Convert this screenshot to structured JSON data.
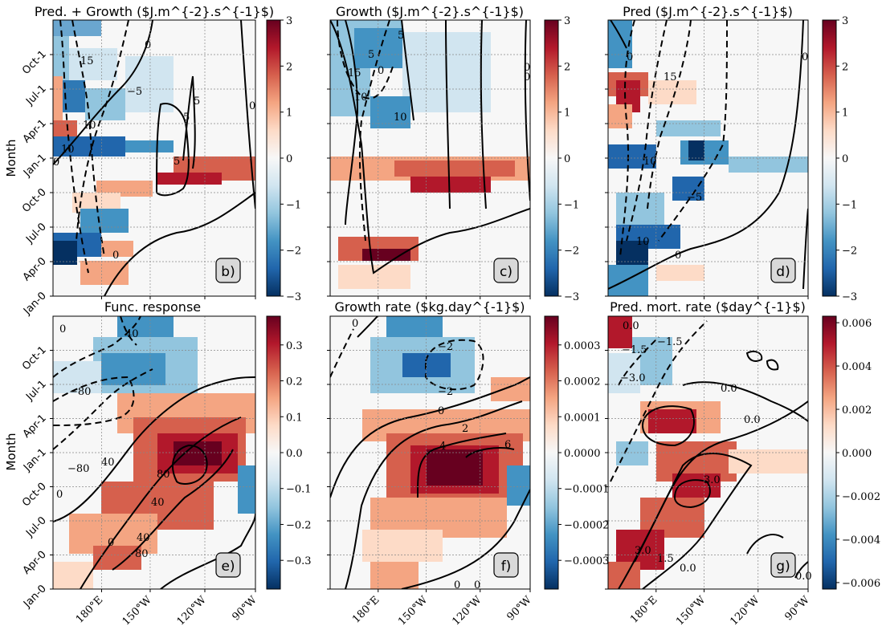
{
  "figure": {
    "ylabel": "Month",
    "rdbu_colors": [
      "#053061",
      "#2166ac",
      "#4393c3",
      "#92c5de",
      "#d1e5f0",
      "#f7f7f7",
      "#fddbc7",
      "#f4a582",
      "#d6604d",
      "#b2182b",
      "#67001f"
    ]
  },
  "chart_data": [
    {
      "id": "b",
      "type": "heatmap",
      "title": "Pred. + Growth ($J.m^{-2}.s^{-1}$)",
      "panel_label": "b)",
      "colorbar": {
        "ticks": [
          -3,
          -2,
          -1,
          0,
          1,
          2,
          3
        ],
        "labels": [
          "−3",
          "−2",
          "−1",
          "0",
          "1",
          "2",
          "3"
        ],
        "vmin": -3,
        "vmax": 3
      },
      "contour_labels": [
        "15",
        "0",
        "−5",
        "10",
        "0",
        "5",
        "5",
        "5",
        "0",
        "10",
        "0"
      ]
    },
    {
      "id": "c",
      "type": "heatmap",
      "title": "Growth ($J.m^{-2}.s^{-1}$)",
      "panel_label": "c)",
      "colorbar": {
        "ticks": [
          -3,
          -2,
          -1,
          0,
          1,
          2,
          3
        ],
        "labels": [
          "−3",
          "−2",
          "−1",
          "0",
          "1",
          "2",
          "3"
        ],
        "vmin": -3,
        "vmax": 3
      },
      "contour_labels": [
        "15",
        "5",
        "10",
        "0",
        "5",
        "10",
        "0",
        "0"
      ]
    },
    {
      "id": "d",
      "type": "heatmap",
      "title": "Pred ($J.m^{-2}.s^{-1}$)",
      "panel_label": "d)",
      "colorbar": {
        "ticks": [
          -3,
          -2,
          -1,
          0,
          1,
          2,
          3
        ],
        "labels": [
          "−3",
          "−2",
          "−1",
          "0",
          "1",
          "2",
          "3"
        ],
        "vmin": -3,
        "vmax": 3
      },
      "contour_labels": [
        "0",
        "15",
        "10",
        "−5",
        "10",
        "0",
        "0"
      ]
    },
    {
      "id": "e",
      "type": "heatmap",
      "title": "Func. response",
      "panel_label": "e)",
      "colorbar": {
        "ticks": [
          -0.3,
          -0.2,
          -0.1,
          0.0,
          0.1,
          0.2,
          0.3
        ],
        "labels": [
          "−0.3",
          "−0.2",
          "−0.1",
          "0.0",
          "0.1",
          "0.2",
          "0.3"
        ],
        "vmin": -0.38,
        "vmax": 0.38
      },
      "contour_labels": [
        "0",
        "40",
        "−80",
        "−80",
        "40",
        "80",
        "40",
        "40",
        "0",
        "80",
        "0"
      ]
    },
    {
      "id": "f",
      "type": "heatmap",
      "title": "Growth rate ($kg.day^{-1}$)",
      "panel_label": "f)",
      "colorbar": {
        "ticks": [
          -0.0003,
          -0.0002,
          -0.0001,
          0.0,
          0.0001,
          0.0002,
          0.0003
        ],
        "labels": [
          "−0.0003",
          "−0.0002",
          "−0.0001",
          "0.0000",
          "0.0001",
          "0.0002",
          "0.0003"
        ],
        "vmin": -0.00038,
        "vmax": 0.00038
      },
      "contour_labels": [
        "0",
        "−2",
        "−2",
        "0",
        "2",
        "4",
        "6",
        "0",
        "0"
      ]
    },
    {
      "id": "g",
      "type": "heatmap",
      "title": "Pred. mort. rate ($day^{-1}$)",
      "panel_label": "g)",
      "colorbar": {
        "ticks": [
          -0.006,
          -0.004,
          -0.002,
          0.0,
          0.002,
          0.004,
          0.006
        ],
        "labels": [
          "−0.006",
          "−0.004",
          "−0.002",
          "0.000",
          "0.002",
          "0.004",
          "0.006"
        ],
        "vmin": -0.0063,
        "vmax": 0.0063
      },
      "contour_labels": [
        "0.0",
        "−1.5",
        "−1.5",
        "−3.0",
        "0.0",
        "0.0",
        "3.0",
        "3.0",
        "1.5",
        "0.0",
        "0.0"
      ]
    }
  ],
  "axes": {
    "y_ticks": [
      "Jan-0",
      "Apr-0",
      "Jul-0",
      "Oct-0",
      "Jan-1",
      "Apr-1",
      "Jul-1",
      "Oct-1"
    ],
    "x_ticks": [
      "180°E",
      "150°W",
      "120°W",
      "90°W"
    ]
  }
}
